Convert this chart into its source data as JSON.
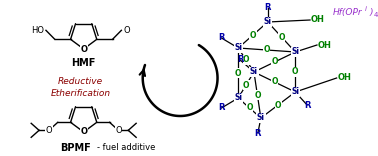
{
  "background_color": "#ffffff",
  "hmf_label": "HMF",
  "bpmf_label": "BPMF",
  "bpmf_sublabel": "- fuel additive",
  "reductive_label": "Reductive",
  "etherification_label": "Etherification",
  "hf_text_color": "#9932CC",
  "reductive_color": "#8B0000",
  "arrow_color": "#000000",
  "bond_color": "#000000",
  "si_color": "#000080",
  "o_color": "#008000",
  "oh_color": "#008000",
  "r_color": "#0000AA",
  "fig_width": 3.78,
  "fig_height": 1.56,
  "dpi": 100
}
